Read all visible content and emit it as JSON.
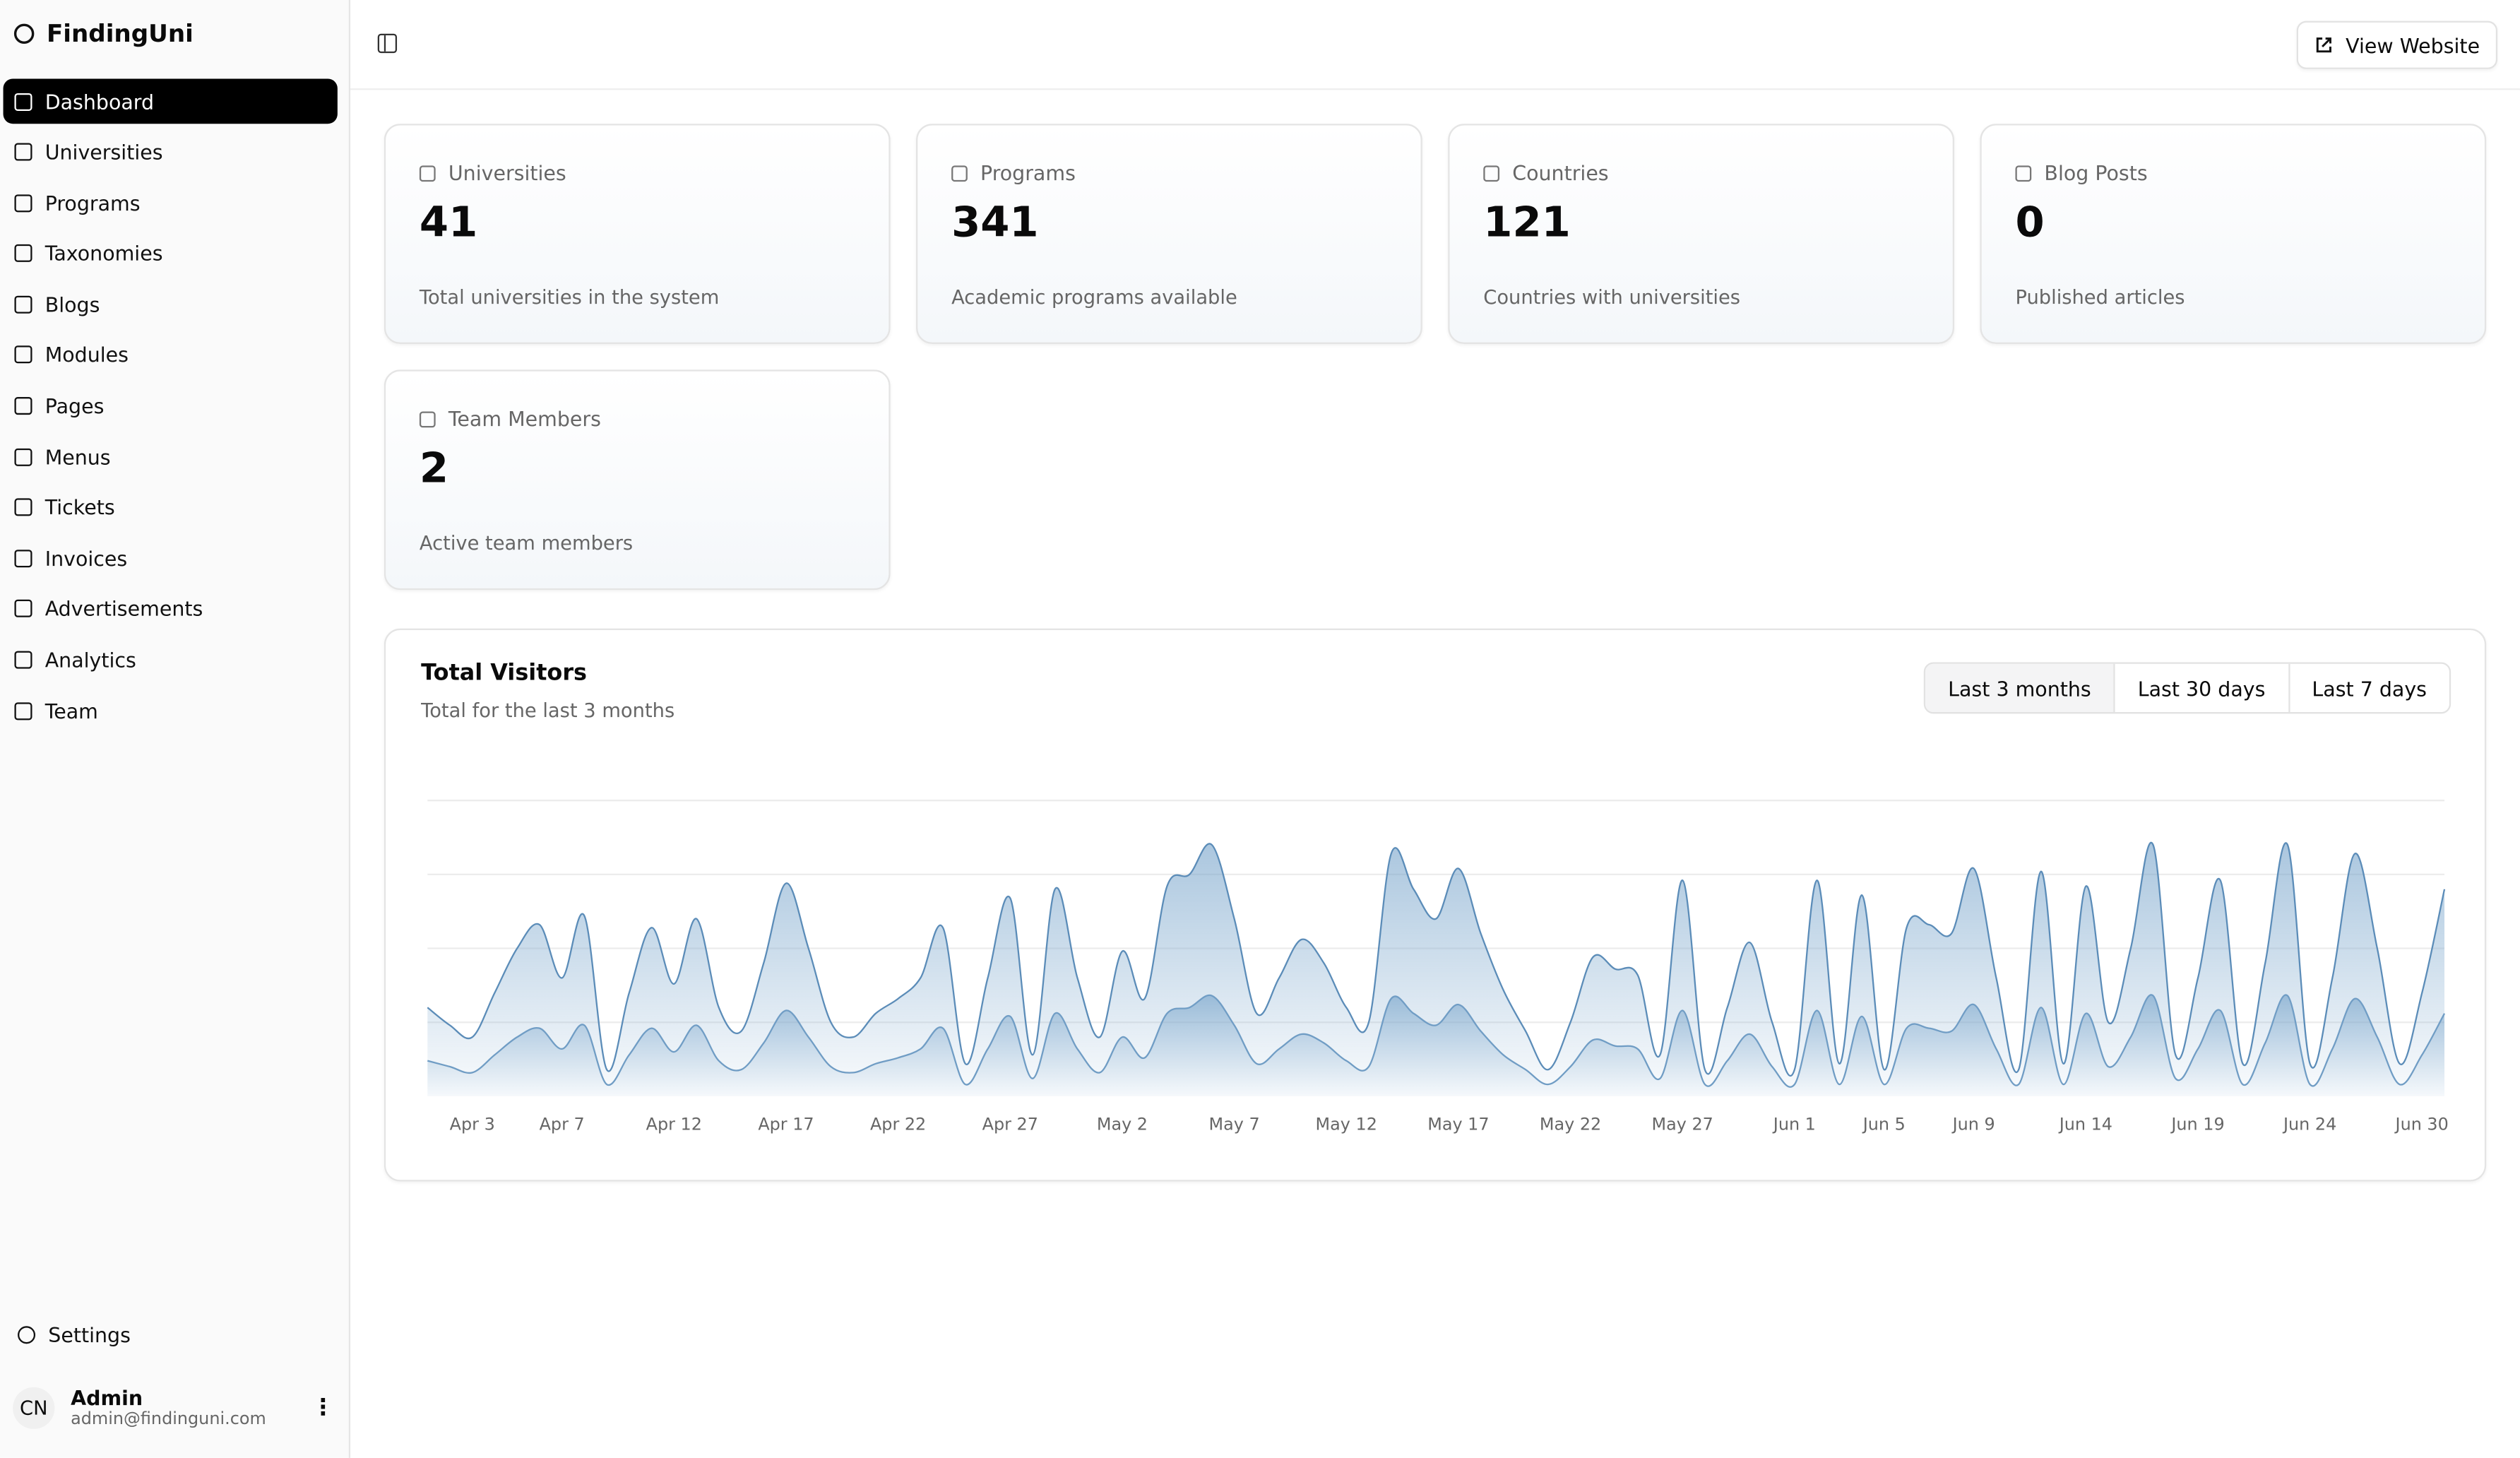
{
  "sidebar": {
    "brand": "FindingUni",
    "nav": [
      "Dashboard",
      "Universities",
      "Programs",
      "Taxonomies",
      "Blogs",
      "Modules",
      "Pages",
      "Menus",
      "Tickets",
      "Invoices",
      "Advertisements",
      "Analytics",
      "Team"
    ],
    "settings": "Settings",
    "user": {
      "initials": "CN",
      "name": "Admin",
      "email": "admin@findinguni.com"
    }
  },
  "header": {
    "button": "View Website"
  },
  "stats": [
    {
      "label": "Universities",
      "value": 41,
      "description": "Total universities in the system"
    },
    {
      "label": "Programs",
      "value": 341,
      "description": "Academic programs available"
    },
    {
      "label": "Countries",
      "value": 121,
      "description": "Countries with universities"
    },
    {
      "label": "Blog Posts",
      "value": 0,
      "description": "Published articles"
    },
    {
      "label": "Team Members",
      "value": 2,
      "description": "Active team members"
    }
  ],
  "chart_data": {
    "type": "area",
    "title": "Total Visitors",
    "subtitle": "Total for the last 3 months",
    "ranges": [
      "Last 3 months",
      "Last 30 days",
      "Last 7 days"
    ],
    "stacked": true,
    "grid": true,
    "ylim": [
      0,
      100
    ],
    "yticks": [
      25,
      50,
      75,
      100
    ],
    "categories": [
      null,
      null,
      "Apr 3",
      null,
      null,
      null,
      "Apr 7",
      null,
      null,
      null,
      null,
      "Apr 12",
      null,
      null,
      null,
      null,
      "Apr 17",
      null,
      null,
      null,
      null,
      "Apr 22",
      null,
      null,
      null,
      null,
      "Apr 27",
      null,
      null,
      null,
      null,
      "May 2",
      null,
      null,
      null,
      null,
      "May 7",
      null,
      null,
      null,
      null,
      "May 12",
      null,
      null,
      null,
      null,
      "May 17",
      null,
      null,
      null,
      null,
      "May 22",
      null,
      null,
      null,
      null,
      "May 27",
      null,
      null,
      null,
      null,
      "Jun 1",
      null,
      null,
      null,
      "Jun 5",
      null,
      null,
      null,
      "Jun 9",
      null,
      null,
      null,
      null,
      "Jun 14",
      null,
      null,
      null,
      null,
      "Jun 19",
      null,
      null,
      null,
      null,
      "Jun 24",
      null,
      null,
      null,
      null,
      null,
      "Jun 30"
    ],
    "series": [
      {
        "color": "#6f9cc4",
        "values": [
          12,
          10,
          8,
          14,
          20,
          23,
          16,
          24,
          4,
          14,
          23,
          15,
          24,
          12,
          9,
          18,
          29,
          20,
          10,
          8,
          11,
          13,
          16,
          23,
          4,
          16,
          27,
          6,
          28,
          16,
          8,
          20,
          13,
          28,
          30,
          34,
          24,
          11,
          16,
          21,
          18,
          12,
          10,
          33,
          28,
          24,
          31,
          22,
          14,
          9,
          4,
          10,
          19,
          17,
          16,
          6,
          29,
          4,
          12,
          21,
          10,
          4,
          29,
          4,
          27,
          4,
          23,
          23,
          22,
          31,
          16,
          4,
          30,
          4,
          28,
          10,
          20,
          34,
          6,
          16,
          29,
          4,
          18,
          34,
          4,
          16,
          33,
          20,
          4,
          14,
          28
        ]
      },
      {
        "color": "#5b8cb8",
        "values": [
          18,
          14,
          12,
          21,
          30,
          35,
          24,
          37,
          5,
          21,
          34,
          23,
          36,
          18,
          13,
          27,
          43,
          30,
          15,
          12,
          17,
          20,
          24,
          34,
          7,
          24,
          40,
          8,
          42,
          24,
          12,
          29,
          20,
          43,
          45,
          51,
          36,
          17,
          24,
          32,
          27,
          18,
          15,
          49,
          42,
          36,
          46,
          33,
          22,
          13,
          5,
          15,
          28,
          26,
          25,
          8,
          44,
          5,
          18,
          31,
          15,
          5,
          44,
          7,
          41,
          5,
          34,
          35,
          33,
          46,
          24,
          5,
          46,
          7,
          43,
          15,
          30,
          51,
          8,
          24,
          44,
          7,
          27,
          51,
          7,
          24,
          49,
          30,
          7,
          21,
          42
        ]
      }
    ]
  }
}
